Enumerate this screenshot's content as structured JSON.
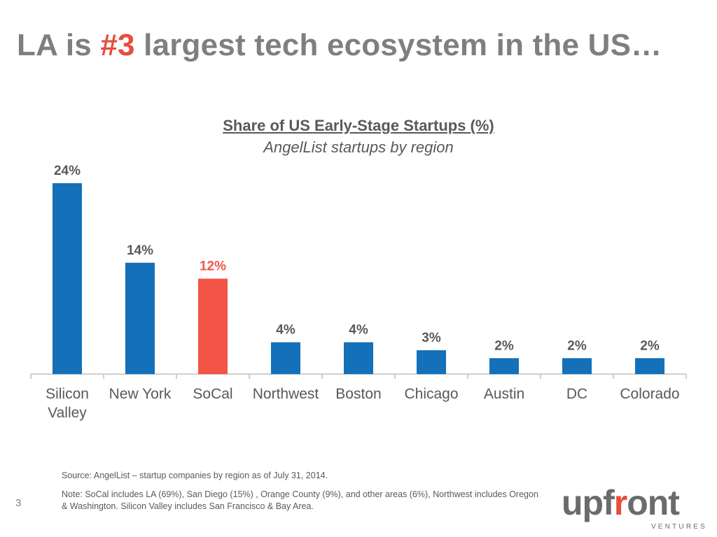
{
  "slide": {
    "title_prefix": "LA is ",
    "title_highlight": "#3",
    "title_suffix": " largest tech ecosystem in the US…",
    "page_number": "3",
    "source": "Source: AngelList – startup companies by region as of July 31, 2014.",
    "note": "Note: SoCal includes LA (69%), San Diego (15%) , Orange County (9%), and other areas (6%), Northwest includes Oregon & Washington. Silicon Valley includes San Francisco & Bay Area."
  },
  "logo": {
    "text_part1": "upf",
    "text_r": "r",
    "text_part2": "ont",
    "tagline": "VENTURES"
  },
  "colors": {
    "bar": "#1470b8",
    "highlight": "#f25445",
    "title": "#7f7f7f",
    "text": "#595959",
    "axis": "#bfbfbf",
    "logo": "#6b6b6b"
  },
  "chart_data": {
    "type": "bar",
    "title": "Share of US Early-Stage Startups (%)",
    "subtitle": "AngelList startups by region",
    "categories": [
      "Silicon Valley",
      "New York",
      "SoCal",
      "Northwest",
      "Boston",
      "Chicago",
      "Austin",
      "DC",
      "Colorado"
    ],
    "values": [
      24,
      14,
      12,
      4,
      4,
      3,
      2,
      2,
      2
    ],
    "data_labels": [
      "24%",
      "14%",
      "12%",
      "4%",
      "4%",
      "3%",
      "2%",
      "2%",
      "2%"
    ],
    "highlight_category": "SoCal",
    "unit": "%",
    "ylim": [
      0,
      24
    ],
    "grid": false,
    "legend": false,
    "xlabel": "",
    "ylabel": ""
  }
}
